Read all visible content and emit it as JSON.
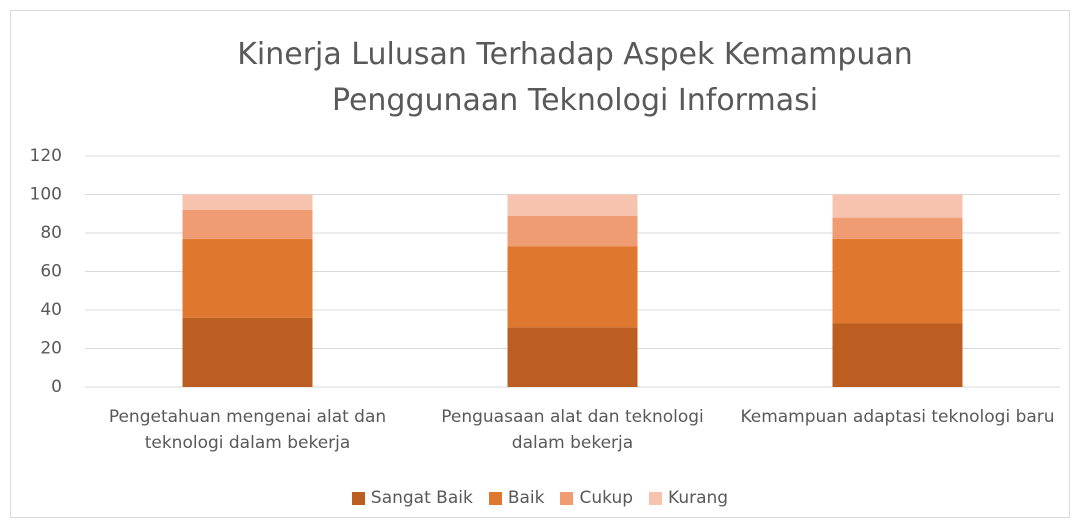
{
  "chart_data": {
    "type": "stacked_bar",
    "title": "Kinerja Lulusan Terhadap Aspek Kemampuan Penggunaan Teknologi Informasi",
    "categories": [
      "Pengetahuan mengenai alat dan teknologi dalam bekerja",
      "Penguasaan alat dan teknologi dalam bekerja",
      "Kemampuan adaptasi teknologi baru"
    ],
    "series": [
      {
        "name": "Sangat Baik",
        "color": "#bc5e22",
        "values": [
          36,
          31,
          33
        ]
      },
      {
        "name": "Baik",
        "color": "#e0772e",
        "values": [
          41,
          42,
          44
        ]
      },
      {
        "name": "Cukup",
        "color": "#f09c72",
        "values": [
          15,
          16,
          11
        ]
      },
      {
        "name": "Kurang",
        "color": "#f6c4ae",
        "values": [
          8,
          11,
          12
        ]
      }
    ],
    "ylim": [
      0,
      120
    ],
    "yticks": [
      0,
      20,
      40,
      60,
      80,
      100,
      120
    ],
    "grid": true,
    "legend": "bottom"
  }
}
